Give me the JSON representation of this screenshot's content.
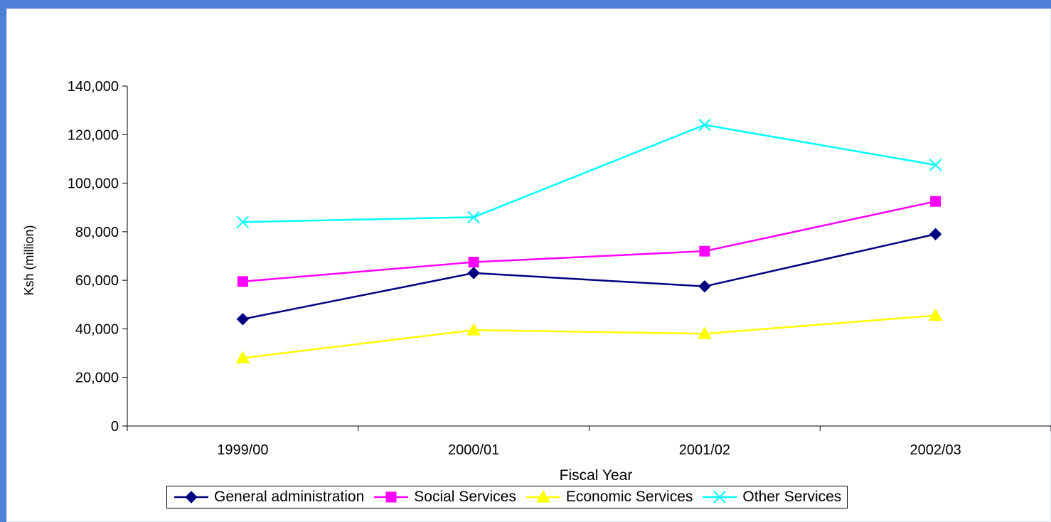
{
  "chart_data": {
    "type": "line",
    "title": "",
    "xlabel": "Fiscal Year",
    "ylabel": "Ksh (million)",
    "categories": [
      "1999/00",
      "2000/01",
      "2001/02",
      "2002/03"
    ],
    "ylim": [
      0,
      140000
    ],
    "yticks": [
      0,
      20000,
      40000,
      60000,
      80000,
      100000,
      120000,
      140000
    ],
    "ytick_labels": [
      "0",
      "20,000",
      "40,000",
      "60,000",
      "80,000",
      "100,000",
      "120,000",
      "140,000"
    ],
    "grid": false,
    "legend_position": "bottom",
    "series": [
      {
        "name": "General administration",
        "values": [
          44000,
          63000,
          57500,
          79000
        ],
        "color": "#000080",
        "marker": "diamond"
      },
      {
        "name": "Social Services",
        "values": [
          59500,
          67500,
          72000,
          92500
        ],
        "color": "#ff00ff",
        "marker": "square"
      },
      {
        "name": "Economic Services",
        "values": [
          28000,
          39500,
          38000,
          45500
        ],
        "color": "#ffff00",
        "marker": "triangle"
      },
      {
        "name": "Other Services",
        "values": [
          84000,
          86000,
          124000,
          107500
        ],
        "color": "#00ffff",
        "marker": "x"
      }
    ]
  }
}
